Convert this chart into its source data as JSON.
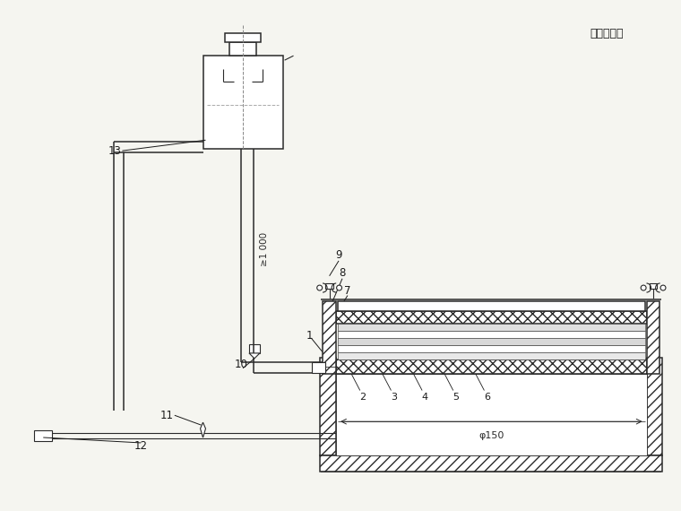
{
  "title_label": "单位为毫米",
  "bg_color": "#f5f5f0",
  "line_color": "#2a2a2a",
  "label_color": "#1a1a1a",
  "phi150_label": "φ150",
  "height_label": "≥1 000",
  "figsize": [
    7.6,
    5.7
  ],
  "dpi": 100
}
